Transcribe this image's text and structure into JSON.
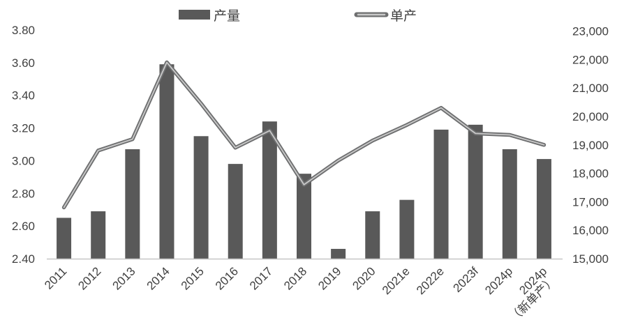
{
  "chart_data": {
    "type": "combo_bar_line",
    "title": "",
    "categories": [
      "2011",
      "2012",
      "2013",
      "2014",
      "2015",
      "2016",
      "2017",
      "2018",
      "2019",
      "2020",
      "2021e",
      "2022e",
      "2023f",
      "2024p",
      "2024p\n（新单产）"
    ],
    "series": [
      {
        "name": "产量",
        "type": "bar",
        "axis": "left",
        "values": [
          2.65,
          2.69,
          3.07,
          3.59,
          3.15,
          2.98,
          3.24,
          2.92,
          2.46,
          2.69,
          2.76,
          3.19,
          3.22,
          3.07,
          3.01
        ]
      },
      {
        "name": "单产",
        "type": "line",
        "axis": "right",
        "values": [
          16800,
          18800,
          19200,
          21900,
          20450,
          18900,
          19500,
          17600,
          18450,
          19150,
          19700,
          20300,
          19400,
          19350,
          19000
        ]
      }
    ],
    "left_axis": {
      "min": 2.4,
      "max": 3.8,
      "step": 0.2,
      "tick_labels": [
        "3.80",
        "3.60",
        "3.40",
        "3.20",
        "3.00",
        "2.80",
        "2.60",
        "2.40"
      ]
    },
    "right_axis": {
      "min": 15000,
      "max": 23000,
      "step": 1000,
      "tick_labels": [
        "23,000",
        "22,000",
        "21,000",
        "20,000",
        "19,000",
        "18,000",
        "17,000",
        "16,000",
        "15,000"
      ]
    },
    "legend": {
      "position": "top",
      "items": [
        {
          "label": "产量",
          "marker": "bar"
        },
        {
          "label": "单产",
          "marker": "line"
        }
      ]
    },
    "grid": false,
    "colors": {
      "bar": "#595959",
      "line_outer": "#6e6f70",
      "line_inner": "#c9c9c9",
      "axis_text": "#3f3f3f",
      "baseline": "#c6c6c6",
      "background": "#ffffff"
    }
  }
}
